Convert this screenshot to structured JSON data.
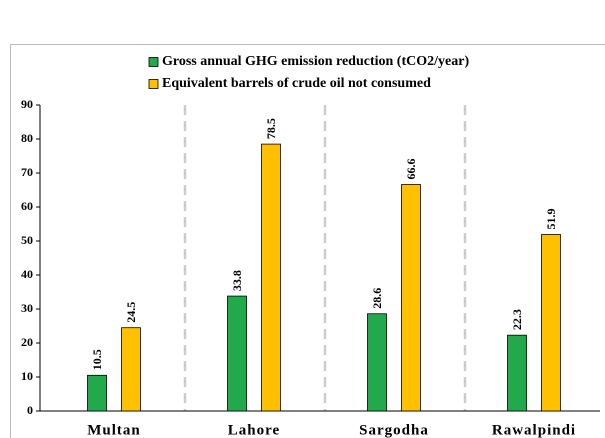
{
  "chart_data": {
    "type": "bar",
    "categories": [
      "Multan",
      "Lahore",
      "Sargodha",
      "Rawalpindi"
    ],
    "series": [
      {
        "name": "Gross annual GHG emission reduction (tCO2/year)",
        "color": "#22a94b",
        "values": [
          10.5,
          33.8,
          28.6,
          22.3
        ]
      },
      {
        "name": "Equivalent barrels of crude oil not consumed",
        "color": "#ffc000",
        "values": [
          24.5,
          78.5,
          66.6,
          51.9
        ]
      }
    ],
    "ylim": [
      0,
      90
    ],
    "yticks": [
      0,
      10,
      20,
      30,
      40,
      50,
      60,
      70,
      80,
      90
    ],
    "legend": "top"
  }
}
